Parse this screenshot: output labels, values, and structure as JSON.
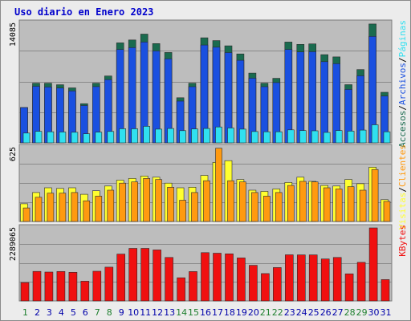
{
  "title": "Uso diario en Enero 2023",
  "colors": {
    "title": "#0000cc",
    "plot_bg": "#bdbdbd",
    "grid": "#8a8a8a",
    "hits": "#1a6b4f",
    "files": "#1a50e0",
    "pages": "#30e0f0",
    "visits": "#ffff30",
    "clients": "#ff9a10",
    "kbytes": "#f01010",
    "weekend": "#208030",
    "weekday": "#0000aa"
  },
  "y_max_labels": {
    "top": "14085",
    "middle": "625",
    "bottom": "2289065"
  },
  "legend": {
    "top": [
      "Accesos",
      "/",
      "Archivos",
      "/",
      "Páginas"
    ],
    "middle": [
      "Visitas",
      "/",
      "Clientes"
    ],
    "bottom": [
      "KBytes"
    ]
  },
  "chart_data": {
    "type": "bar",
    "title": "Uso diario en Enero 2023",
    "categories": [
      "1",
      "2",
      "3",
      "4",
      "5",
      "6",
      "7",
      "8",
      "9",
      "10",
      "11",
      "12",
      "13",
      "14",
      "15",
      "16",
      "17",
      "18",
      "19",
      "20",
      "21",
      "22",
      "23",
      "24",
      "25",
      "26",
      "27",
      "28",
      "29",
      "30",
      "31"
    ],
    "weekend_days": [
      "1",
      "7",
      "8",
      "14",
      "15",
      "21",
      "22",
      "28",
      "29"
    ],
    "panels": [
      {
        "name": "top",
        "ylim": [
          0,
          14085
        ],
        "series": [
          {
            "name": "Accesos",
            "values": [
              4160,
              7020,
              7020,
              6840,
              6480,
              4610,
              7020,
              7870,
              11780,
              12120,
              12810,
              11690,
              10640,
              5310,
              7020,
              12370,
              12040,
              11430,
              10470,
              8210,
              7020,
              7600,
              11870,
              11600,
              11660,
              10390,
              10120,
              6850,
              8630,
              14000,
              5960
            ]
          },
          {
            "name": "Archivos",
            "values": [
              4160,
              6660,
              6580,
              6460,
              6120,
              4400,
              6630,
              7450,
              11000,
              11220,
              11870,
              10820,
              9900,
              4920,
              6620,
              11520,
              11270,
              10630,
              9730,
              7620,
              6620,
              7100,
              11000,
              10710,
              10740,
              9570,
              9330,
              6300,
              7900,
              12540,
              5510
            ]
          },
          {
            "name": "Páginas",
            "values": [
              1150,
              1350,
              1300,
              1280,
              1250,
              1070,
              1260,
              1340,
              1660,
              1650,
              1950,
              1620,
              1690,
              1440,
              1640,
              1690,
              1870,
              1750,
              1620,
              1330,
              1300,
              1300,
              1530,
              1450,
              1420,
              1230,
              1450,
              1380,
              1500,
              2130,
              1300
            ]
          }
        ]
      },
      {
        "name": "middle",
        "ylim": [
          0,
          625
        ],
        "series": [
          {
            "name": "Visitas",
            "values": [
              150,
              245,
              285,
              280,
              285,
              230,
              260,
              300,
              350,
              365,
              385,
              375,
              325,
              285,
              290,
              390,
              500,
              515,
              355,
              265,
              255,
              275,
              330,
              375,
              340,
              305,
              300,
              355,
              320,
              460,
              185
            ]
          },
          {
            "name": "Clientes",
            "values": [
              115,
              205,
              240,
              240,
              245,
              175,
              215,
              265,
              325,
              335,
              365,
              355,
              290,
              180,
              245,
              345,
              620,
              345,
              335,
              245,
              215,
              245,
              305,
              340,
              335,
              285,
              275,
              295,
              265,
              440,
              170
            ]
          }
        ]
      },
      {
        "name": "bottom",
        "ylim": [
          0,
          2289065
        ],
        "series": [
          {
            "name": "KBytes",
            "values": [
              577000,
              925000,
              905000,
              923000,
              898000,
              619000,
              931000,
              1058000,
              1470000,
              1647000,
              1647000,
              1600000,
              1363000,
              726000,
              920000,
              1515000,
              1497000,
              1477000,
              1349000,
              1118000,
              859000,
              1047000,
              1446000,
              1445000,
              1445000,
              1315000,
              1363000,
              850000,
              1210000,
              2289065,
              668000
            ]
          }
        ]
      }
    ]
  }
}
